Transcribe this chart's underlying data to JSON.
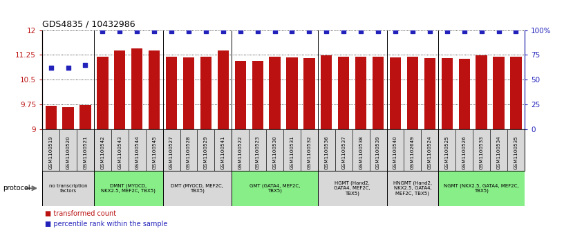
{
  "title": "GDS4835 / 10432986",
  "samples": [
    "GSM1100519",
    "GSM1100520",
    "GSM1100521",
    "GSM1100542",
    "GSM1100543",
    "GSM1100544",
    "GSM1100545",
    "GSM1100527",
    "GSM1100528",
    "GSM1100529",
    "GSM1100541",
    "GSM1100522",
    "GSM1100523",
    "GSM1100530",
    "GSM1100531",
    "GSM1100532",
    "GSM1100536",
    "GSM1100537",
    "GSM1100538",
    "GSM1100539",
    "GSM1100540",
    "GSM1102649",
    "GSM1100524",
    "GSM1100525",
    "GSM1100526",
    "GSM1100533",
    "GSM1100534",
    "GSM1100535"
  ],
  "bar_values": [
    9.72,
    9.67,
    9.74,
    11.2,
    11.38,
    11.44,
    11.38,
    11.2,
    11.18,
    11.19,
    11.38,
    11.08,
    11.06,
    11.19,
    11.18,
    11.16,
    11.24,
    11.19,
    11.19,
    11.19,
    11.18,
    11.2,
    11.16,
    11.16,
    11.14,
    11.24,
    11.19,
    11.2
  ],
  "percentile_values": [
    62,
    62,
    65,
    99,
    99,
    99,
    99,
    99,
    99,
    99,
    99,
    99,
    99,
    99,
    99,
    99,
    99,
    99,
    99,
    99,
    99,
    99,
    99,
    99,
    99,
    99,
    99,
    99
  ],
  "bar_color": "#bb1111",
  "dot_color": "#2222bb",
  "ylim_left": [
    9.0,
    12.0
  ],
  "ylim_right": [
    0,
    100
  ],
  "yticks_left": [
    9.0,
    9.75,
    10.5,
    11.25,
    12.0
  ],
  "yticks_right": [
    0,
    25,
    50,
    75,
    100
  ],
  "ytick_labels_left": [
    "9",
    "9.75",
    "10.5",
    "11.25",
    "12"
  ],
  "ytick_labels_right": [
    "0",
    "25",
    "50",
    "75",
    "100%"
  ],
  "groups": [
    {
      "label": "no transcription\nfactors",
      "start": 0,
      "end": 3,
      "color": "#d8d8d8"
    },
    {
      "label": "DMNT (MYOCD,\nNKX2.5, MEF2C, TBX5)",
      "start": 3,
      "end": 7,
      "color": "#88ee88"
    },
    {
      "label": "DMT (MYOCD, MEF2C,\nTBX5)",
      "start": 7,
      "end": 11,
      "color": "#d8d8d8"
    },
    {
      "label": "GMT (GATA4, MEF2C,\nTBX5)",
      "start": 11,
      "end": 16,
      "color": "#88ee88"
    },
    {
      "label": "HGMT (Hand2,\nGATA4, MEF2C,\nTBX5)",
      "start": 16,
      "end": 20,
      "color": "#d8d8d8"
    },
    {
      "label": "HNGMT (Hand2,\nNKX2.5, GATA4,\nMEF2C, TBX5)",
      "start": 20,
      "end": 23,
      "color": "#d8d8d8"
    },
    {
      "label": "NGMT (NKX2.5, GATA4, MEF2C,\nTBX5)",
      "start": 23,
      "end": 28,
      "color": "#88ee88"
    }
  ],
  "protocol_label": "protocol",
  "legend_bar": "transformed count",
  "legend_dot": "percentile rank within the sample"
}
